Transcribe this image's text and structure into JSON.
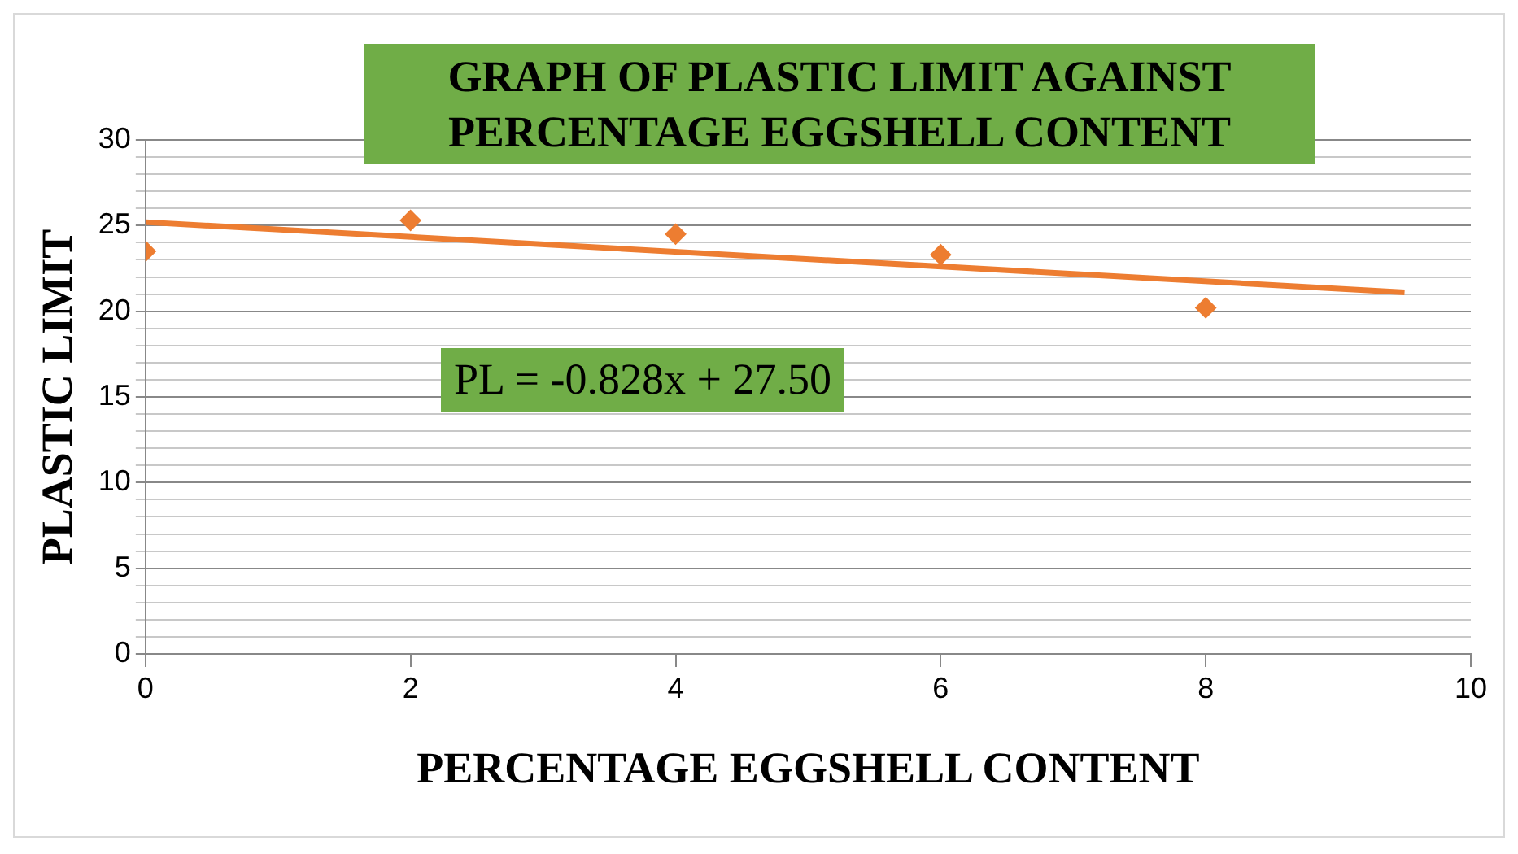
{
  "chart_data": {
    "type": "scatter",
    "title": "GRAPH OF PLASTIC LIMIT AGAINST PERCENTAGE EGGSHELL CONTENT",
    "xlabel": "PERCENTAGE EGGSHELL CONTENT",
    "ylabel": "PLASTIC LIMIT",
    "annotations": [
      "PL = -0.828x + 27.50"
    ],
    "series": [
      {
        "color": "#ed7d31",
        "x": [
          0,
          2,
          4,
          6,
          8
        ],
        "values": [
          23.5,
          25.3,
          24.5,
          23.3,
          20.2
        ]
      },
      {
        "type": "line",
        "color": "#ed7d31",
        "x": [
          0,
          9.5
        ],
        "values": [
          25.2,
          21.1
        ],
        "marker": "none"
      }
    ],
    "xlim": [
      0,
      10
    ],
    "xticks": [
      0,
      2,
      4,
      6,
      8,
      10
    ],
    "ylim": [
      0,
      30
    ],
    "yticks": [
      0,
      {
        "value": 1,
        "label": null
      },
      {
        "value": 2,
        "label": null
      },
      {
        "value": 3,
        "label": null
      },
      {
        "value": 4,
        "label": null
      },
      5,
      {
        "value": 6,
        "label": null
      },
      {
        "value": 7,
        "label": null
      },
      {
        "value": 8,
        "label": null
      },
      {
        "value": 9,
        "label": null
      },
      10,
      {
        "value": 11,
        "label": null
      },
      {
        "value": 12,
        "label": null
      },
      {
        "value": 13,
        "label": null
      },
      {
        "value": 14,
        "label": null
      },
      15,
      {
        "value": 16,
        "label": null
      },
      {
        "value": 17,
        "label": null
      },
      {
        "value": 18,
        "label": null
      },
      {
        "value": 19,
        "label": null
      },
      20,
      {
        "value": 21,
        "label": null
      },
      {
        "value": 22,
        "label": null
      },
      {
        "value": 23,
        "label": null
      },
      {
        "value": 24,
        "label": null
      },
      25,
      {
        "value": 26,
        "label": null
      },
      {
        "value": 27,
        "label": null
      },
      {
        "value": 28,
        "label": null
      },
      {
        "value": 29,
        "label": null
      },
      30
    ],
    "grid": "y",
    "legend": false,
    "marker": "diamond",
    "line_style": "solid"
  }
}
